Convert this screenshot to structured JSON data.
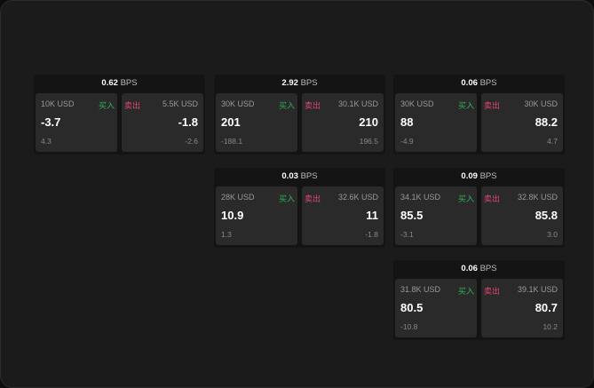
{
  "unit": "BPS",
  "buy_label": "买入",
  "sell_label": "卖出",
  "colors": {
    "buy": "#2fb25a",
    "sell": "#e0466f"
  },
  "cards": [
    {
      "spread": "0.62",
      "buy": {
        "amount": "10K USD",
        "price": "-3.7",
        "change": "4.3"
      },
      "sell": {
        "amount": "5.5K USD",
        "price": "-1.8",
        "change": "-2.6"
      }
    },
    {
      "spread": "2.92",
      "buy": {
        "amount": "30K USD",
        "price": "201",
        "change": "-188.1"
      },
      "sell": {
        "amount": "30.1K USD",
        "price": "210",
        "change": "196.5"
      }
    },
    {
      "spread": "0.06",
      "buy": {
        "amount": "30K USD",
        "price": "88",
        "change": "-4.9"
      },
      "sell": {
        "amount": "30K USD",
        "price": "88.2",
        "change": "4.7"
      }
    },
    {
      "spread": "0.03",
      "buy": {
        "amount": "28K USD",
        "price": "10.9",
        "change": "1.3"
      },
      "sell": {
        "amount": "32.6K USD",
        "price": "11",
        "change": "-1.8"
      }
    },
    {
      "spread": "0.09",
      "buy": {
        "amount": "34.1K USD",
        "price": "85.5",
        "change": "-3.1"
      },
      "sell": {
        "amount": "32.8K USD",
        "price": "85.8",
        "change": "3.0"
      }
    },
    {
      "spread": "0.06",
      "buy": {
        "amount": "31.8K USD",
        "price": "80.5",
        "change": "-10.8"
      },
      "sell": {
        "amount": "39.1K USD",
        "price": "80.7",
        "change": "10.2"
      }
    }
  ]
}
